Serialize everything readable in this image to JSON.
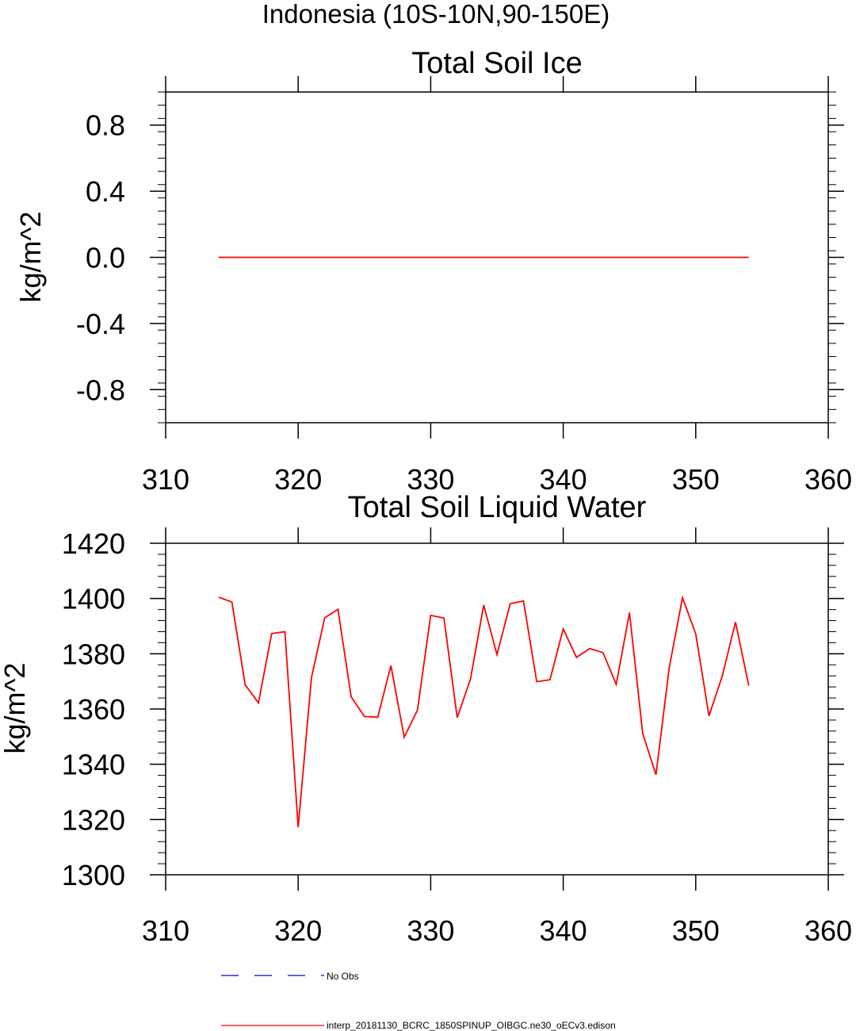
{
  "page_title": "Indonesia (10S-10N,90-150E)",
  "chart_data": [
    {
      "type": "line",
      "title": "Total Soil Ice",
      "xlabel": "",
      "ylabel": "kg/m^2",
      "xlim": [
        310,
        360
      ],
      "ylim": [
        -1,
        1
      ],
      "x_ticks": [
        310,
        320,
        330,
        340,
        350,
        360
      ],
      "x_tick_labels": [
        "310",
        "320",
        "330",
        "340",
        "350",
        "360"
      ],
      "y_ticks": [
        -0.8,
        -0.4,
        0.0,
        0.4,
        0.8
      ],
      "y_tick_labels": [
        "-0.8",
        "-0.4",
        "0.0",
        "0.4",
        "0.8"
      ],
      "series": [
        {
          "color": "#ff0000",
          "x": [
            314,
            354
          ],
          "values": [
            0,
            0
          ]
        }
      ]
    },
    {
      "type": "line",
      "title": "Total Soil Liquid Water",
      "xlabel": "",
      "ylabel": "kg/m^2",
      "xlim": [
        310,
        360
      ],
      "ylim": [
        1300,
        1420
      ],
      "x_ticks": [
        310,
        320,
        330,
        340,
        350,
        360
      ],
      "x_tick_labels": [
        "310",
        "320",
        "330",
        "340",
        "350",
        "360"
      ],
      "y_ticks": [
        1300,
        1320,
        1340,
        1360,
        1380,
        1400,
        1420
      ],
      "y_tick_labels": [
        "1300",
        "1320",
        "1340",
        "1360",
        "1380",
        "1400",
        "1420"
      ],
      "series": [
        {
          "color": "#ff0000",
          "x": [
            314,
            315,
            316,
            317,
            318,
            319,
            320,
            321,
            322,
            323,
            324,
            325,
            326,
            327,
            328,
            329,
            330,
            331,
            332,
            333,
            334,
            335,
            336,
            337,
            338,
            339,
            340,
            341,
            342,
            343,
            344,
            345,
            346,
            347,
            348,
            349,
            350,
            351,
            352,
            353,
            354
          ],
          "values": [
            1400.5,
            1398.7,
            1368.8,
            1362.2,
            1387.3,
            1388.0,
            1317.2,
            1371.3,
            1393.0,
            1396.1,
            1364.4,
            1357.3,
            1357.0,
            1375.7,
            1349.8,
            1359.6,
            1393.9,
            1392.9,
            1356.9,
            1370.8,
            1397.6,
            1379.7,
            1398.1,
            1399.1,
            1369.9,
            1370.6,
            1389.0,
            1378.7,
            1381.9,
            1380.4,
            1368.9,
            1394.9,
            1351.1,
            1336.2,
            1375.0,
            1400.3,
            1387.2,
            1357.5,
            1371.9,
            1391.5,
            1368.5
          ]
        }
      ]
    }
  ],
  "legend": {
    "items": [
      {
        "label": "No Obs",
        "color": "#0000cc",
        "style": "dashed"
      },
      {
        "label": "interp_20181130_BCRC_1850SPINUP_OIBGC.ne30_oECv3.edison",
        "color": "#ff0000",
        "style": "solid"
      }
    ]
  }
}
